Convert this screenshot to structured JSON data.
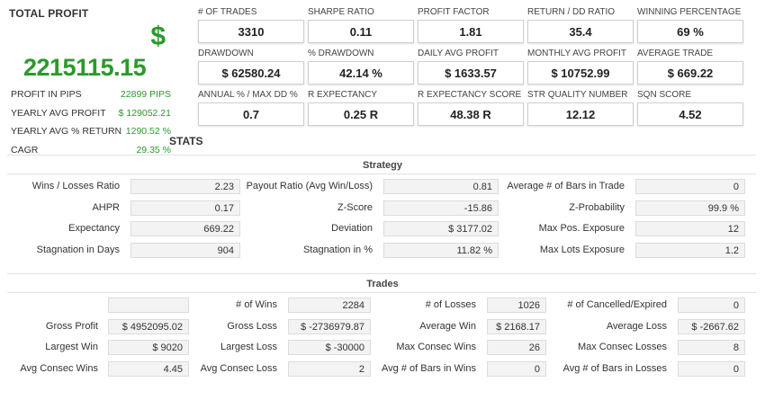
{
  "total_profit": {
    "title": "TOTAL PROFIT",
    "currency": "$",
    "value": "2215115.15",
    "rows": [
      {
        "label": "PROFIT IN PIPS",
        "value": "22899 PIPS"
      },
      {
        "label": "YEARLY AVG PROFIT",
        "value": "$ 129052.21"
      },
      {
        "label": "YEARLY AVG % RETURN",
        "value": "1290.52 %"
      },
      {
        "label": "CAGR",
        "value": "29.35 %"
      }
    ]
  },
  "cards": [
    {
      "label": "# OF TRADES",
      "value": "3310"
    },
    {
      "label": "SHARPE RATIO",
      "value": "0.11"
    },
    {
      "label": "PROFIT FACTOR",
      "value": "1.81"
    },
    {
      "label": "RETURN / DD RATIO",
      "value": "35.4"
    },
    {
      "label": "WINNING PERCENTAGE",
      "value": "69 %"
    },
    {
      "label": "DRAWDOWN",
      "value": "$ 62580.24"
    },
    {
      "label": "% DRAWDOWN",
      "value": "42.14 %"
    },
    {
      "label": "DAILY AVG PROFIT",
      "value": "$ 1633.57"
    },
    {
      "label": "MONTHLY AVG PROFIT",
      "value": "$ 10752.99"
    },
    {
      "label": "AVERAGE TRADE",
      "value": "$ 669.22"
    },
    {
      "label": "ANNUAL % / MAX DD %",
      "value": "0.7"
    },
    {
      "label": "R EXPECTANCY",
      "value": "0.25 R"
    },
    {
      "label": "R EXPECTANCY SCORE",
      "value": "48.38 R"
    },
    {
      "label": "STR QUALITY NUMBER",
      "value": "12.12"
    },
    {
      "label": "SQN SCORE",
      "value": "4.52"
    }
  ],
  "stats_label": "STATS",
  "strategy": {
    "title": "Strategy",
    "rows": [
      [
        {
          "label": "Wins / Losses Ratio",
          "value": "2.23"
        },
        {
          "label": "Payout Ratio (Avg Win/Loss)",
          "value": "0.81"
        },
        {
          "label": "Average # of Bars in Trade",
          "value": "0"
        }
      ],
      [
        {
          "label": "AHPR",
          "value": "0.17"
        },
        {
          "label": "Z-Score",
          "value": "-15.86"
        },
        {
          "label": "Z-Probability",
          "value": "99.9 %"
        }
      ],
      [
        {
          "label": "Expectancy",
          "value": "669.22"
        },
        {
          "label": "Deviation",
          "value": "$ 3177.02"
        },
        {
          "label": "Max Pos. Exposure",
          "value": "12"
        }
      ],
      [
        {
          "label": "Stagnation in Days",
          "value": "904"
        },
        {
          "label": "Stagnation in %",
          "value": "11.82 %"
        },
        {
          "label": "Max Lots Exposure",
          "value": "1.2"
        }
      ]
    ]
  },
  "trades": {
    "title": "Trades",
    "rows": [
      [
        {
          "label": "",
          "value": ""
        },
        {
          "label": "# of Wins",
          "value": "2284"
        },
        {
          "label": "# of Losses",
          "value": "1026"
        },
        {
          "label": "# of Cancelled/Expired",
          "value": "0"
        }
      ],
      [
        {
          "label": "Gross Profit",
          "value": "$ 4952095.02"
        },
        {
          "label": "Gross Loss",
          "value": "$ -2736979.87"
        },
        {
          "label": "Average Win",
          "value": "$ 2168.17"
        },
        {
          "label": "Average Loss",
          "value": "$ -2667.62"
        }
      ],
      [
        {
          "label": "Largest Win",
          "value": "$ 9020"
        },
        {
          "label": "Largest Loss",
          "value": "$ -30000"
        },
        {
          "label": "Max Consec Wins",
          "value": "26"
        },
        {
          "label": "Max Consec Losses",
          "value": "8"
        }
      ],
      [
        {
          "label": "Avg Consec Wins",
          "value": "4.45"
        },
        {
          "label": "Avg Consec Loss",
          "value": "2"
        },
        {
          "label": "Avg # of Bars in Wins",
          "value": "0"
        },
        {
          "label": "Avg # of Bars in Losses",
          "value": "0"
        }
      ]
    ]
  }
}
